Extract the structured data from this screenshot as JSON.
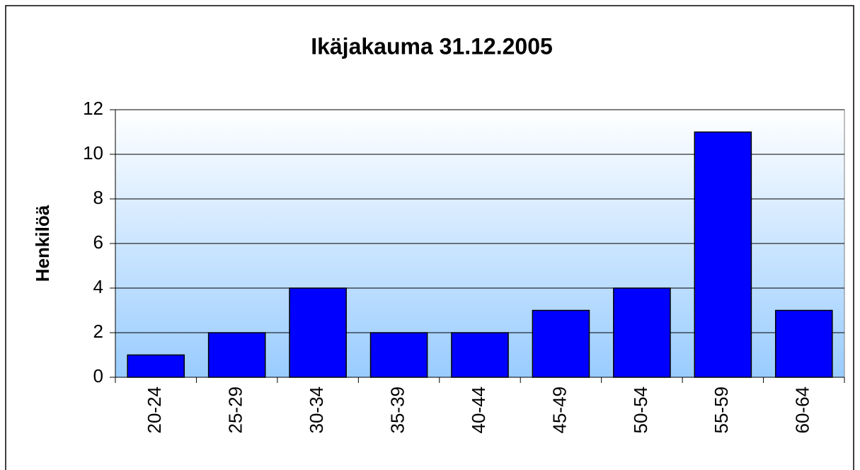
{
  "chart_data": {
    "type": "bar",
    "title": "Ikäjakauma 31.12.2005",
    "y_label": "Henkilöä",
    "categories": [
      "20-24",
      "25-29",
      "30-34",
      "35-39",
      "40-44",
      "45-49",
      "50-54",
      "55-59",
      "60-64"
    ],
    "values": [
      1,
      2,
      4,
      2,
      2,
      3,
      4,
      11,
      3
    ],
    "color": "#0000ff",
    "ylim": [
      0,
      12
    ],
    "yticks": [
      0,
      2,
      4,
      6,
      8,
      10,
      12
    ],
    "grid": true
  }
}
